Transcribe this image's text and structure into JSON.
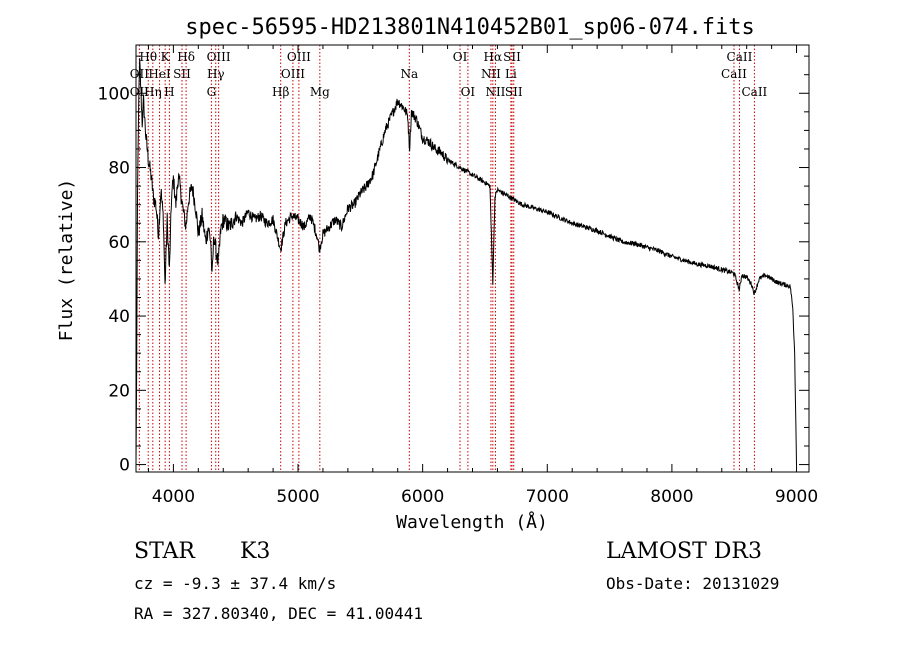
{
  "colors": {
    "spectrum": "#000000",
    "lines": "#cc0000",
    "background": "#ffffff"
  },
  "header": {
    "title": "spec-56595-HD213801N410452B01_sp06-074.fits"
  },
  "info": {
    "class_label": "STAR",
    "subclass": "K3",
    "survey": "LAMOST DR3",
    "redshift_text": "cz = -9.3 ± 37.4 km/s",
    "obs_date_text": "Obs-Date: 20131029",
    "coords_text": "RA = 327.80340, DEC =  41.00441"
  },
  "chart_data": {
    "type": "line",
    "title": "spec-56595-HD213801N410452B01_sp06-074.fits",
    "xlabel": "Wavelength (Å)",
    "ylabel": "Flux (relative)",
    "xlim": [
      3700,
      9100
    ],
    "ylim": [
      -2,
      113
    ],
    "x_ticks": [
      4000,
      5000,
      6000,
      7000,
      8000,
      9000
    ],
    "y_ticks": [
      0,
      20,
      40,
      60,
      80,
      100
    ],
    "grid": false,
    "series": [
      {
        "points": [
          [
            3700,
            0
          ],
          [
            3706,
            28
          ],
          [
            3712,
            70
          ],
          [
            3720,
            95
          ],
          [
            3730,
            108
          ],
          [
            3740,
            100
          ],
          [
            3750,
            92
          ],
          [
            3760,
            98
          ],
          [
            3780,
            88
          ],
          [
            3800,
            82
          ],
          [
            3820,
            78
          ],
          [
            3840,
            72
          ],
          [
            3860,
            70
          ],
          [
            3880,
            62
          ],
          [
            3900,
            74
          ],
          [
            3920,
            66
          ],
          [
            3933,
            48
          ],
          [
            3950,
            66
          ],
          [
            3968,
            52
          ],
          [
            3985,
            72
          ],
          [
            4000,
            77
          ],
          [
            4020,
            70
          ],
          [
            4040,
            78
          ],
          [
            4060,
            73
          ],
          [
            4080,
            68
          ],
          [
            4101,
            64
          ],
          [
            4120,
            71
          ],
          [
            4150,
            75
          ],
          [
            4180,
            69
          ],
          [
            4200,
            62
          ],
          [
            4230,
            67
          ],
          [
            4260,
            60
          ],
          [
            4280,
            64
          ],
          [
            4300,
            60
          ],
          [
            4310,
            50
          ],
          [
            4325,
            62
          ],
          [
            4340,
            58
          ],
          [
            4360,
            54
          ],
          [
            4380,
            63
          ],
          [
            4400,
            66
          ],
          [
            4450,
            64
          ],
          [
            4500,
            67
          ],
          [
            4550,
            65
          ],
          [
            4600,
            68
          ],
          [
            4650,
            66
          ],
          [
            4700,
            67
          ],
          [
            4750,
            65
          ],
          [
            4800,
            66
          ],
          [
            4861,
            58
          ],
          [
            4900,
            65
          ],
          [
            4950,
            67
          ],
          [
            5000,
            66
          ],
          [
            5050,
            64
          ],
          [
            5100,
            67
          ],
          [
            5150,
            62
          ],
          [
            5172,
            58
          ],
          [
            5200,
            62
          ],
          [
            5250,
            64
          ],
          [
            5300,
            66
          ],
          [
            5350,
            64
          ],
          [
            5400,
            69
          ],
          [
            5450,
            70
          ],
          [
            5500,
            73
          ],
          [
            5550,
            75
          ],
          [
            5600,
            78
          ],
          [
            5650,
            84
          ],
          [
            5700,
            90
          ],
          [
            5750,
            94
          ],
          [
            5800,
            98
          ],
          [
            5850,
            96
          ],
          [
            5880,
            94
          ],
          [
            5895,
            85
          ],
          [
            5910,
            95
          ],
          [
            5950,
            93
          ],
          [
            6000,
            88
          ],
          [
            6050,
            87
          ],
          [
            6100,
            85
          ],
          [
            6150,
            84
          ],
          [
            6200,
            82
          ],
          [
            6250,
            81
          ],
          [
            6300,
            80
          ],
          [
            6350,
            79
          ],
          [
            6400,
            78
          ],
          [
            6450,
            77
          ],
          [
            6500,
            76
          ],
          [
            6540,
            75
          ],
          [
            6563,
            49
          ],
          [
            6580,
            72
          ],
          [
            6600,
            74
          ],
          [
            6650,
            73
          ],
          [
            6700,
            72
          ],
          [
            6750,
            71
          ],
          [
            6800,
            70
          ],
          [
            6900,
            69
          ],
          [
            7000,
            68
          ],
          [
            7100,
            66.5
          ],
          [
            7200,
            65
          ],
          [
            7300,
            64
          ],
          [
            7400,
            63
          ],
          [
            7500,
            61.5
          ],
          [
            7600,
            60
          ],
          [
            7700,
            59.5
          ],
          [
            7800,
            58.5
          ],
          [
            7900,
            57.5
          ],
          [
            8000,
            56
          ],
          [
            8100,
            55
          ],
          [
            8200,
            54
          ],
          [
            8300,
            53.5
          ],
          [
            8400,
            52.5
          ],
          [
            8500,
            51.5
          ],
          [
            8542,
            47
          ],
          [
            8560,
            51
          ],
          [
            8600,
            50.5
          ],
          [
            8640,
            48.5
          ],
          [
            8662,
            46
          ],
          [
            8700,
            50
          ],
          [
            8750,
            51
          ],
          [
            8800,
            50
          ],
          [
            8850,
            49
          ],
          [
            8900,
            48.5
          ],
          [
            8950,
            48
          ],
          [
            8970,
            42
          ],
          [
            8985,
            30
          ],
          [
            9000,
            0
          ]
        ]
      }
    ],
    "annotations": [
      {
        "label": "Hθ",
        "x": 3798,
        "row": 1
      },
      {
        "label": "OII",
        "x": 3727,
        "row": 2
      },
      {
        "label": "OII",
        "x": 3727,
        "row": 3
      },
      {
        "label": "K",
        "x": 3934,
        "row": 1
      },
      {
        "label": "HeI",
        "x": 3889,
        "row": 2
      },
      {
        "label": "Hη",
        "x": 3835,
        "row": 3
      },
      {
        "label": "H",
        "x": 3968,
        "row": 3
      },
      {
        "label": "Hδ",
        "x": 4102,
        "row": 1
      },
      {
        "label": "SII",
        "x": 4069,
        "row": 2
      },
      {
        "label": "OIII",
        "x": 4363,
        "row": 1
      },
      {
        "label": "Hγ",
        "x": 4340,
        "row": 2
      },
      {
        "label": "G",
        "x": 4305,
        "row": 3
      },
      {
        "label": "OIII",
        "x": 5007,
        "row": 1
      },
      {
        "label": "OIII",
        "x": 4959,
        "row": 2
      },
      {
        "label": "Hβ",
        "x": 4861,
        "row": 3
      },
      {
        "label": "Mg",
        "x": 5175,
        "row": 3
      },
      {
        "label": "Na",
        "x": 5893,
        "row": 2
      },
      {
        "label": "OI",
        "x": 6300,
        "row": 1
      },
      {
        "label": "OI",
        "x": 6363,
        "row": 3
      },
      {
        "label": "Hα",
        "x": 6563,
        "row": 1
      },
      {
        "label": "SII",
        "x": 6717,
        "row": 1
      },
      {
        "label": "NII",
        "x": 6548,
        "row": 2
      },
      {
        "label": "Li",
        "x": 6708,
        "row": 2
      },
      {
        "label": "NII",
        "x": 6584,
        "row": 3
      },
      {
        "label": "SII",
        "x": 6731,
        "row": 3
      },
      {
        "label": "CaII",
        "x": 8542,
        "row": 1
      },
      {
        "label": "CaII",
        "x": 8498,
        "row": 2
      },
      {
        "label": "CaII",
        "x": 8662,
        "row": 3
      }
    ]
  }
}
